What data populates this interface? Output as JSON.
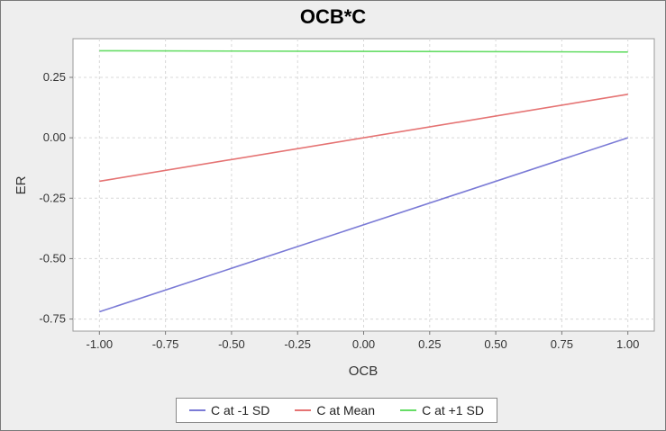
{
  "chart_data": {
    "type": "line",
    "title": "OCB*C",
    "xlabel": "OCB",
    "ylabel": "ER",
    "xlim": [
      -1.1,
      1.1
    ],
    "ylim": [
      -0.8,
      0.41
    ],
    "xticks": [
      "-1.00",
      "-0.75",
      "-0.50",
      "-0.25",
      "0.00",
      "0.25",
      "0.50",
      "0.75",
      "1.00"
    ],
    "xtick_values": [
      -1.0,
      -0.75,
      -0.5,
      -0.25,
      0.0,
      0.25,
      0.5,
      0.75,
      1.0
    ],
    "yticks": [
      "0.25",
      "0.00",
      "-0.25",
      "-0.50",
      "-0.75"
    ],
    "ytick_values": [
      0.25,
      0.0,
      -0.25,
      -0.5,
      -0.75
    ],
    "grid": true,
    "legend_position": "bottom",
    "series": [
      {
        "name": "C at -1 SD",
        "color": "#7b7bd6",
        "x": [
          -1.0,
          1.0
        ],
        "y": [
          -0.72,
          0.0
        ]
      },
      {
        "name": "C at Mean",
        "color": "#e57373",
        "x": [
          -1.0,
          1.0
        ],
        "y": [
          -0.18,
          0.18
        ]
      },
      {
        "name": "C at +1 SD",
        "color": "#66dd66",
        "x": [
          -1.0,
          1.0
        ],
        "y": [
          0.36,
          0.355
        ]
      }
    ]
  }
}
